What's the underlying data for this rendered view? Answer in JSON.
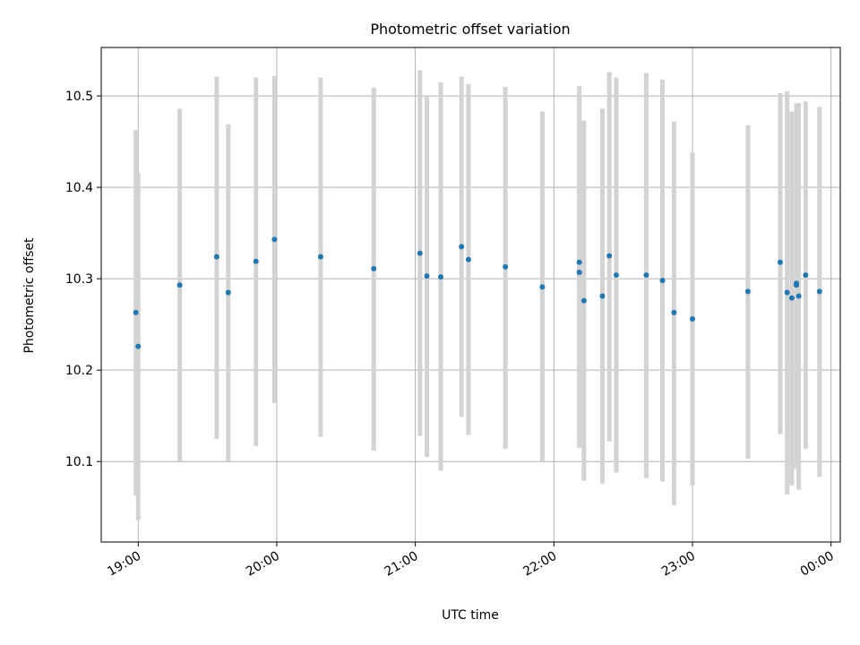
{
  "chart_data": {
    "type": "scatter",
    "title": "Photometric offset variation",
    "xlabel": "UTC time",
    "ylabel": "Photometric offset",
    "x_format": "HH:MM (UTC, hours since 19:00)",
    "xlim": [
      "18:44",
      "00:04"
    ],
    "ylim": [
      10.012,
      10.553
    ],
    "xticks": [
      "19:00",
      "20:00",
      "21:00",
      "22:00",
      "23:00",
      "00:00"
    ],
    "yticks": [
      "10.1",
      "10.2",
      "10.3",
      "10.4",
      "10.5"
    ],
    "grid": true,
    "point_color": "#1f77b4",
    "errorbar_color": "#d3d3d3",
    "series": [
      {
        "points": [
          {
            "x": "18:59",
            "y": 10.263,
            "ylo": 10.063,
            "yhi": 10.463
          },
          {
            "x": "19:00",
            "y": 10.226,
            "ylo": 10.036,
            "yhi": 10.416
          },
          {
            "x": "19:18",
            "y": 10.293,
            "ylo": 10.1,
            "yhi": 10.486
          },
          {
            "x": "19:34",
            "y": 10.324,
            "ylo": 10.125,
            "yhi": 10.521
          },
          {
            "x": "19:39",
            "y": 10.285,
            "ylo": 10.1,
            "yhi": 10.469
          },
          {
            "x": "19:51",
            "y": 10.319,
            "ylo": 10.117,
            "yhi": 10.52
          },
          {
            "x": "19:59",
            "y": 10.343,
            "ylo": 10.164,
            "yhi": 10.522
          },
          {
            "x": "20:19",
            "y": 10.324,
            "ylo": 10.127,
            "yhi": 10.52
          },
          {
            "x": "20:42",
            "y": 10.311,
            "ylo": 10.112,
            "yhi": 10.509
          },
          {
            "x": "21:02",
            "y": 10.328,
            "ylo": 10.128,
            "yhi": 10.528
          },
          {
            "x": "21:05",
            "y": 10.303,
            "ylo": 10.105,
            "yhi": 10.5
          },
          {
            "x": "21:11",
            "y": 10.302,
            "ylo": 10.09,
            "yhi": 10.515
          },
          {
            "x": "21:20",
            "y": 10.335,
            "ylo": 10.149,
            "yhi": 10.521
          },
          {
            "x": "21:23",
            "y": 10.321,
            "ylo": 10.129,
            "yhi": 10.513
          },
          {
            "x": "21:39",
            "y": 10.313,
            "ylo": 10.114,
            "yhi": 10.51
          },
          {
            "x": "21:55",
            "y": 10.291,
            "ylo": 10.1,
            "yhi": 10.483
          },
          {
            "x": "22:11",
            "y": 10.318,
            "ylo": 10.125,
            "yhi": 10.511
          },
          {
            "x": "22:11",
            "y": 10.307,
            "ylo": 10.115,
            "yhi": 10.498
          },
          {
            "x": "22:13",
            "y": 10.276,
            "ylo": 10.079,
            "yhi": 10.473
          },
          {
            "x": "22:21",
            "y": 10.281,
            "ylo": 10.076,
            "yhi": 10.486
          },
          {
            "x": "22:24",
            "y": 10.325,
            "ylo": 10.122,
            "yhi": 10.526
          },
          {
            "x": "22:27",
            "y": 10.304,
            "ylo": 10.088,
            "yhi": 10.52
          },
          {
            "x": "22:40",
            "y": 10.304,
            "ylo": 10.082,
            "yhi": 10.525
          },
          {
            "x": "22:47",
            "y": 10.298,
            "ylo": 10.078,
            "yhi": 10.518
          },
          {
            "x": "22:52",
            "y": 10.263,
            "ylo": 10.052,
            "yhi": 10.472
          },
          {
            "x": "23:00",
            "y": 10.256,
            "ylo": 10.074,
            "yhi": 10.438
          },
          {
            "x": "23:24",
            "y": 10.286,
            "ylo": 10.103,
            "yhi": 10.468
          },
          {
            "x": "23:38",
            "y": 10.318,
            "ylo": 10.13,
            "yhi": 10.503
          },
          {
            "x": "23:41",
            "y": 10.285,
            "ylo": 10.064,
            "yhi": 10.505
          },
          {
            "x": "23:43",
            "y": 10.279,
            "ylo": 10.074,
            "yhi": 10.483
          },
          {
            "x": "23:45",
            "y": 10.295,
            "ylo": 10.095,
            "yhi": 10.491
          },
          {
            "x": "23:45",
            "y": 10.293,
            "ylo": 10.092,
            "yhi": 10.492
          },
          {
            "x": "23:46",
            "y": 10.281,
            "ylo": 10.069,
            "yhi": 10.492
          },
          {
            "x": "23:49",
            "y": 10.304,
            "ylo": 10.114,
            "yhi": 10.494
          },
          {
            "x": "23:55",
            "y": 10.286,
            "ylo": 10.083,
            "yhi": 10.488
          }
        ]
      }
    ]
  }
}
